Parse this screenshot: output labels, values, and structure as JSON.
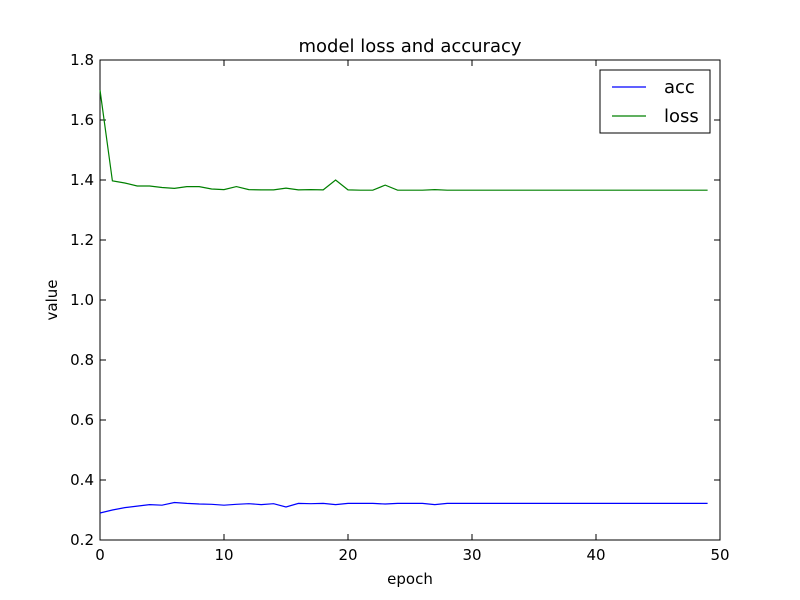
{
  "chart_data": {
    "type": "line",
    "title": "model loss and accuracy",
    "xlabel": "epoch",
    "ylabel": "value",
    "xlim": [
      0,
      50
    ],
    "ylim": [
      0.2,
      1.8
    ],
    "xticks": [
      0,
      10,
      20,
      30,
      40,
      50
    ],
    "xtick_labels": [
      "0",
      "10",
      "20",
      "30",
      "40",
      "50"
    ],
    "yticks": [
      0.2,
      0.4,
      0.6,
      0.8,
      1.0,
      1.2,
      1.4,
      1.6,
      1.8
    ],
    "ytick_labels": [
      "0.2",
      "0.4",
      "0.6",
      "0.8",
      "1.0",
      "1.2",
      "1.4",
      "1.6",
      "1.8"
    ],
    "grid": false,
    "legend_position": "top-right",
    "x": [
      0,
      1,
      2,
      3,
      4,
      5,
      6,
      7,
      8,
      9,
      10,
      11,
      12,
      13,
      14,
      15,
      16,
      17,
      18,
      19,
      20,
      21,
      22,
      23,
      24,
      25,
      26,
      27,
      28,
      29,
      30,
      31,
      32,
      33,
      34,
      35,
      36,
      37,
      38,
      39,
      40,
      41,
      42,
      43,
      44,
      45,
      46,
      47,
      48,
      49
    ],
    "series": [
      {
        "name": "acc",
        "color": "#0000ff",
        "values": [
          0.29,
          0.3,
          0.308,
          0.313,
          0.318,
          0.316,
          0.325,
          0.322,
          0.32,
          0.319,
          0.316,
          0.319,
          0.321,
          0.318,
          0.321,
          0.31,
          0.322,
          0.321,
          0.322,
          0.318,
          0.322,
          0.322,
          0.322,
          0.32,
          0.322,
          0.322,
          0.322,
          0.318,
          0.322,
          0.322,
          0.322,
          0.322,
          0.322,
          0.322,
          0.322,
          0.322,
          0.322,
          0.322,
          0.322,
          0.322,
          0.322,
          0.322,
          0.322,
          0.322,
          0.322,
          0.322,
          0.322,
          0.322,
          0.322,
          0.322
        ]
      },
      {
        "name": "loss",
        "color": "#008000",
        "values": [
          1.7,
          1.397,
          1.39,
          1.38,
          1.38,
          1.375,
          1.372,
          1.378,
          1.378,
          1.37,
          1.368,
          1.378,
          1.368,
          1.367,
          1.367,
          1.373,
          1.367,
          1.368,
          1.367,
          1.4,
          1.367,
          1.366,
          1.366,
          1.383,
          1.366,
          1.366,
          1.366,
          1.368,
          1.366,
          1.366,
          1.366,
          1.366,
          1.366,
          1.366,
          1.366,
          1.366,
          1.366,
          1.366,
          1.366,
          1.366,
          1.366,
          1.366,
          1.366,
          1.366,
          1.366,
          1.366,
          1.366,
          1.366,
          1.366,
          1.366
        ]
      }
    ]
  }
}
